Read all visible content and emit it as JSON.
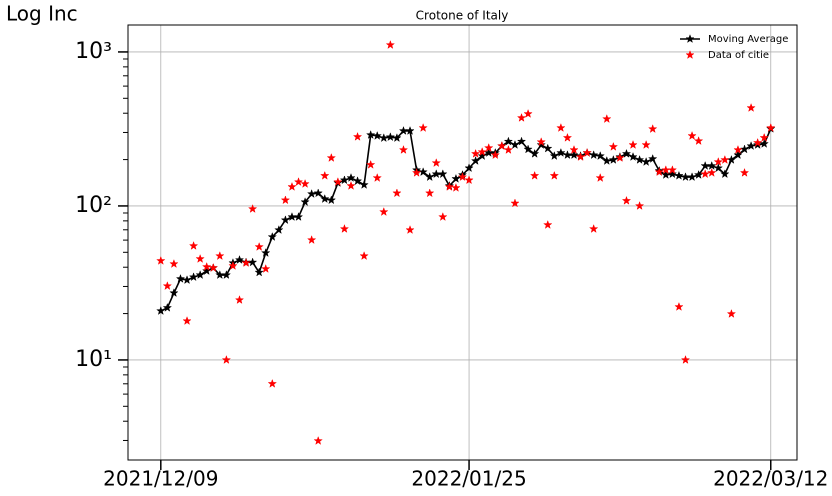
{
  "chart_data": {
    "type": "line",
    "title": "Crotone of Italy",
    "y_label": "Log Inc",
    "log_scale_y": true,
    "grid": true,
    "legend_position": "upper right",
    "x": [
      "2021/12/09",
      "2021/12/10",
      "2021/12/11",
      "2021/12/12",
      "2021/12/13",
      "2021/12/14",
      "2021/12/15",
      "2021/12/16",
      "2021/12/17",
      "2021/12/18",
      "2021/12/19",
      "2021/12/20",
      "2021/12/21",
      "2021/12/22",
      "2021/12/23",
      "2021/12/24",
      "2021/12/25",
      "2021/12/26",
      "2021/12/27",
      "2021/12/28",
      "2021/12/29",
      "2021/12/30",
      "2021/12/31",
      "2022/01/01",
      "2022/01/02",
      "2022/01/03",
      "2022/01/04",
      "2022/01/05",
      "2022/01/06",
      "2022/01/07",
      "2022/01/08",
      "2022/01/09",
      "2022/01/10",
      "2022/01/11",
      "2022/01/12",
      "2022/01/13",
      "2022/01/14",
      "2022/01/15",
      "2022/01/16",
      "2022/01/17",
      "2022/01/18",
      "2022/01/19",
      "2022/01/20",
      "2022/01/21",
      "2022/01/22",
      "2022/01/23",
      "2022/01/24",
      "2022/01/25",
      "2022/01/26",
      "2022/01/27",
      "2022/01/28",
      "2022/01/29",
      "2022/01/30",
      "2022/01/31",
      "2022/02/01",
      "2022/02/02",
      "2022/02/03",
      "2022/02/04",
      "2022/02/05",
      "2022/02/06",
      "2022/02/07",
      "2022/02/08",
      "2022/02/09",
      "2022/02/10",
      "2022/02/11",
      "2022/02/12",
      "2022/02/13",
      "2022/02/14",
      "2022/02/15",
      "2022/02/16",
      "2022/02/17",
      "2022/02/18",
      "2022/02/19",
      "2022/02/20",
      "2022/02/21",
      "2022/02/22",
      "2022/02/23",
      "2022/02/24",
      "2022/02/25",
      "2022/02/26",
      "2022/02/27",
      "2022/02/28",
      "2022/03/01",
      "2022/03/02",
      "2022/03/03",
      "2022/03/04",
      "2022/03/05",
      "2022/03/06",
      "2022/03/07",
      "2022/03/08",
      "2022/03/09",
      "2022/03/10",
      "2022/03/11",
      "2022/03/12"
    ],
    "series": [
      {
        "name": "Moving Average",
        "color": "#000000",
        "marker": "star",
        "line": true,
        "values": [
          20.8,
          21.8,
          27.2,
          33.6,
          33,
          34.5,
          35.6,
          37.8,
          39.6,
          35.6,
          35.6,
          42.6,
          44.6,
          43,
          43,
          37,
          49.5,
          62.9,
          69.8,
          80.9,
          84.8,
          84.8,
          106,
          119.6,
          121,
          111,
          109,
          141,
          147,
          152,
          145,
          137,
          289,
          285,
          276,
          280,
          276,
          307,
          307,
          171,
          166,
          154,
          161,
          161,
          135,
          150,
          159,
          176,
          196,
          211,
          221,
          221,
          245,
          262,
          249,
          262,
          233,
          218,
          249,
          236,
          211,
          221,
          214,
          214,
          211,
          221,
          214,
          211,
          196,
          199,
          208,
          218,
          208,
          199,
          193,
          202,
          169,
          159,
          161,
          157,
          154,
          154,
          159,
          182,
          182,
          176,
          161,
          199,
          214,
          233,
          245,
          249,
          253,
          317
        ]
      },
      {
        "name": "Data of citie",
        "color": "#ff0000",
        "marker": "star",
        "line": false,
        "values": [
          44,
          30.2,
          42,
          null,
          17.9,
          55,
          45.3,
          40.2,
          39.6,
          47.3,
          10,
          40.8,
          24.5,
          42.6,
          95.6,
          54.2,
          39,
          7,
          null,
          109,
          133,
          143,
          139,
          60.1,
          2.98,
          157,
          205,
          143,
          70.9,
          135,
          281,
          47.3,
          185,
          152,
          91.4,
          1110,
          121,
          231,
          69.8,
          164,
          321,
          121,
          190,
          84.8,
          133,
          131,
          154,
          147,
          218,
          224,
          238,
          214,
          245,
          231,
          104,
          373,
          396,
          157,
          260,
          75.3,
          157,
          321,
          277,
          231,
          208,
          221,
          70.9,
          152,
          367,
          242,
          205,
          108,
          249,
          100,
          249,
          316,
          166,
          171,
          171,
          22.1,
          10,
          285,
          264,
          161,
          164,
          193,
          199,
          19.9,
          231,
          164,
          433,
          257,
          277,
          321
        ]
      }
    ],
    "xlim": [
      "2021/12/04",
      "2022/03/16"
    ],
    "xticks": [
      "2021/12/09",
      "2022/01/25",
      "2022/03/12"
    ],
    "ylim": [
      2.24,
      1496
    ],
    "yticks": [
      {
        "value": 10,
        "label": "10¹"
      },
      {
        "value": 100,
        "label": "10²"
      },
      {
        "value": 1000,
        "label": "10³"
      }
    ]
  }
}
